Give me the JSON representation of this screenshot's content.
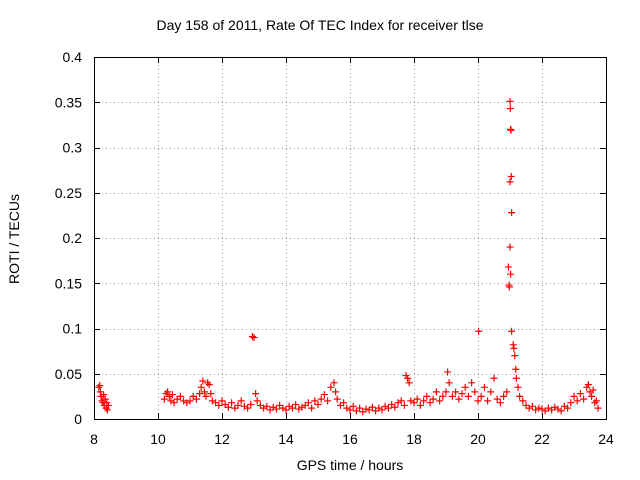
{
  "chart_data": {
    "type": "scatter",
    "title": "Day 158 of 2011, Rate Of TEC Index for receiver tlse",
    "xlabel": "GPS time / hours",
    "ylabel": "ROTI / TECUs",
    "xlim": [
      8,
      24
    ],
    "ylim": [
      0,
      0.4
    ],
    "xticks": [
      8,
      10,
      12,
      14,
      16,
      18,
      20,
      22,
      24
    ],
    "yticks": [
      0,
      0.05,
      0.1,
      0.15,
      0.2,
      0.25,
      0.3,
      0.35,
      0.4
    ],
    "ytick_labels": [
      "0",
      "0.05",
      "0.1",
      "0.15",
      "0.2",
      "0.25",
      "0.3",
      "0.35",
      "0.4"
    ],
    "grid": true,
    "marker": "+",
    "color": "#ff0000",
    "series": [
      {
        "name": "ROTI",
        "points": [
          [
            8.15,
            0.035
          ],
          [
            8.18,
            0.037
          ],
          [
            8.2,
            0.03
          ],
          [
            8.22,
            0.025
          ],
          [
            8.25,
            0.02
          ],
          [
            8.28,
            0.018
          ],
          [
            8.3,
            0.027
          ],
          [
            8.32,
            0.015
          ],
          [
            8.35,
            0.022
          ],
          [
            8.38,
            0.012
          ],
          [
            8.4,
            0.018
          ],
          [
            8.42,
            0.01
          ],
          [
            8.45,
            0.015
          ],
          [
            10.2,
            0.022
          ],
          [
            10.25,
            0.028
          ],
          [
            10.3,
            0.03
          ],
          [
            10.35,
            0.025
          ],
          [
            10.4,
            0.02
          ],
          [
            10.45,
            0.027
          ],
          [
            10.5,
            0.018
          ],
          [
            10.6,
            0.022
          ],
          [
            10.7,
            0.025
          ],
          [
            10.8,
            0.02
          ],
          [
            10.9,
            0.018
          ],
          [
            11.0,
            0.02
          ],
          [
            11.1,
            0.025
          ],
          [
            11.2,
            0.022
          ],
          [
            11.3,
            0.028
          ],
          [
            11.35,
            0.035
          ],
          [
            11.4,
            0.042
          ],
          [
            11.45,
            0.03
          ],
          [
            11.5,
            0.025
          ],
          [
            11.55,
            0.04
          ],
          [
            11.6,
            0.038
          ],
          [
            11.65,
            0.028
          ],
          [
            11.7,
            0.02
          ],
          [
            11.8,
            0.018
          ],
          [
            11.9,
            0.015
          ],
          [
            12.0,
            0.02
          ],
          [
            12.1,
            0.016
          ],
          [
            12.2,
            0.013
          ],
          [
            12.3,
            0.018
          ],
          [
            12.4,
            0.012
          ],
          [
            12.5,
            0.015
          ],
          [
            12.6,
            0.02
          ],
          [
            12.7,
            0.014
          ],
          [
            12.8,
            0.012
          ],
          [
            12.9,
            0.016
          ],
          [
            12.95,
            0.091
          ],
          [
            13.0,
            0.09
          ],
          [
            13.05,
            0.028
          ],
          [
            13.1,
            0.02
          ],
          [
            13.2,
            0.015
          ],
          [
            13.3,
            0.012
          ],
          [
            13.4,
            0.014
          ],
          [
            13.5,
            0.01
          ],
          [
            13.6,
            0.013
          ],
          [
            13.7,
            0.011
          ],
          [
            13.8,
            0.015
          ],
          [
            13.9,
            0.012
          ],
          [
            14.0,
            0.01
          ],
          [
            14.1,
            0.014
          ],
          [
            14.2,
            0.012
          ],
          [
            14.3,
            0.016
          ],
          [
            14.4,
            0.011
          ],
          [
            14.5,
            0.013
          ],
          [
            14.6,
            0.015
          ],
          [
            14.7,
            0.018
          ],
          [
            14.8,
            0.012
          ],
          [
            14.9,
            0.02
          ],
          [
            15.0,
            0.016
          ],
          [
            15.1,
            0.022
          ],
          [
            15.2,
            0.027
          ],
          [
            15.3,
            0.02
          ],
          [
            15.4,
            0.035
          ],
          [
            15.5,
            0.04
          ],
          [
            15.55,
            0.03
          ],
          [
            15.6,
            0.022
          ],
          [
            15.7,
            0.015
          ],
          [
            15.8,
            0.018
          ],
          [
            15.9,
            0.012
          ],
          [
            16.0,
            0.01
          ],
          [
            16.1,
            0.014
          ],
          [
            16.2,
            0.009
          ],
          [
            16.3,
            0.012
          ],
          [
            16.4,
            0.008
          ],
          [
            16.5,
            0.011
          ],
          [
            16.6,
            0.01
          ],
          [
            16.7,
            0.013
          ],
          [
            16.8,
            0.009
          ],
          [
            16.9,
            0.012
          ],
          [
            17.0,
            0.01
          ],
          [
            17.1,
            0.014
          ],
          [
            17.2,
            0.012
          ],
          [
            17.3,
            0.016
          ],
          [
            17.4,
            0.013
          ],
          [
            17.5,
            0.018
          ],
          [
            17.6,
            0.02
          ],
          [
            17.7,
            0.015
          ],
          [
            17.75,
            0.048
          ],
          [
            17.8,
            0.045
          ],
          [
            17.85,
            0.04
          ],
          [
            17.9,
            0.02
          ],
          [
            18.0,
            0.018
          ],
          [
            18.1,
            0.022
          ],
          [
            18.2,
            0.015
          ],
          [
            18.3,
            0.02
          ],
          [
            18.4,
            0.025
          ],
          [
            18.5,
            0.018
          ],
          [
            18.6,
            0.022
          ],
          [
            18.7,
            0.03
          ],
          [
            18.8,
            0.02
          ],
          [
            18.9,
            0.025
          ],
          [
            19.0,
            0.03
          ],
          [
            19.05,
            0.052
          ],
          [
            19.1,
            0.04
          ],
          [
            19.2,
            0.025
          ],
          [
            19.3,
            0.03
          ],
          [
            19.4,
            0.022
          ],
          [
            19.5,
            0.028
          ],
          [
            19.6,
            0.035
          ],
          [
            19.7,
            0.025
          ],
          [
            19.8,
            0.04
          ],
          [
            19.9,
            0.03
          ],
          [
            20.0,
            0.02
          ],
          [
            20.02,
            0.097
          ],
          [
            20.1,
            0.025
          ],
          [
            20.2,
            0.035
          ],
          [
            20.3,
            0.02
          ],
          [
            20.4,
            0.03
          ],
          [
            20.5,
            0.045
          ],
          [
            20.6,
            0.022
          ],
          [
            20.7,
            0.018
          ],
          [
            20.8,
            0.025
          ],
          [
            20.9,
            0.03
          ],
          [
            20.95,
            0.168
          ],
          [
            20.97,
            0.148
          ],
          [
            20.98,
            0.146
          ],
          [
            21.0,
            0.351
          ],
          [
            21.01,
            0.343
          ],
          [
            21.02,
            0.32
          ],
          [
            21.03,
            0.319
          ],
          [
            21.04,
            0.268
          ],
          [
            21.0,
            0.262
          ],
          [
            21.05,
            0.228
          ],
          [
            21.0,
            0.19
          ],
          [
            21.02,
            0.16
          ],
          [
            21.05,
            0.097
          ],
          [
            21.1,
            0.082
          ],
          [
            21.12,
            0.078
          ],
          [
            21.15,
            0.07
          ],
          [
            21.18,
            0.055
          ],
          [
            21.2,
            0.045
          ],
          [
            21.25,
            0.035
          ],
          [
            21.3,
            0.025
          ],
          [
            21.4,
            0.02
          ],
          [
            21.5,
            0.015
          ],
          [
            21.6,
            0.012
          ],
          [
            21.7,
            0.014
          ],
          [
            21.8,
            0.01
          ],
          [
            21.9,
            0.012
          ],
          [
            22.0,
            0.011
          ],
          [
            22.1,
            0.009
          ],
          [
            22.2,
            0.012
          ],
          [
            22.3,
            0.01
          ],
          [
            22.4,
            0.013
          ],
          [
            22.5,
            0.011
          ],
          [
            22.6,
            0.009
          ],
          [
            22.7,
            0.014
          ],
          [
            22.8,
            0.012
          ],
          [
            22.9,
            0.018
          ],
          [
            23.0,
            0.025
          ],
          [
            23.1,
            0.02
          ],
          [
            23.2,
            0.028
          ],
          [
            23.3,
            0.022
          ],
          [
            23.4,
            0.035
          ],
          [
            23.45,
            0.038
          ],
          [
            23.5,
            0.03
          ],
          [
            23.55,
            0.025
          ],
          [
            23.6,
            0.032
          ],
          [
            23.65,
            0.018
          ],
          [
            23.7,
            0.02
          ],
          [
            23.75,
            0.012
          ]
        ]
      }
    ]
  }
}
